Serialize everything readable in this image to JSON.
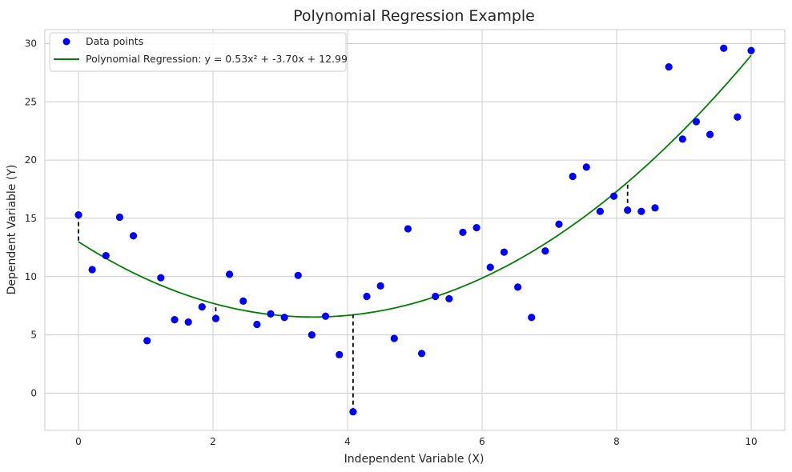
{
  "chart_data": {
    "type": "scatter",
    "title": "Polynomial Regression Example",
    "xlabel": "Independent Variable (X)",
    "ylabel": "Dependent Variable (Y)",
    "xlim": [
      -0.5,
      10.5
    ],
    "ylim": [
      -3.2,
      31.2
    ],
    "xticks": [
      0,
      2,
      4,
      6,
      8,
      10
    ],
    "yticks": [
      0,
      5,
      10,
      15,
      20,
      25,
      30
    ],
    "grid": true,
    "legend_position": "top-left",
    "series": [
      {
        "name": "Data points",
        "kind": "scatter",
        "color": "#0000ff",
        "x": [
          0.0,
          0.204,
          0.408,
          0.612,
          0.816,
          1.02,
          1.224,
          1.429,
          1.633,
          1.837,
          2.041,
          2.245,
          2.449,
          2.653,
          2.857,
          3.061,
          3.265,
          3.469,
          3.673,
          3.878,
          4.082,
          4.286,
          4.49,
          4.694,
          4.898,
          5.102,
          5.306,
          5.51,
          5.714,
          5.918,
          6.122,
          6.327,
          6.531,
          6.735,
          6.939,
          7.143,
          7.347,
          7.551,
          7.755,
          7.959,
          8.163,
          8.367,
          8.571,
          8.776,
          8.98,
          9.184,
          9.388,
          9.592,
          9.796,
          10.0
        ],
        "y": [
          15.3,
          10.6,
          11.8,
          15.1,
          13.5,
          4.5,
          9.9,
          6.3,
          6.1,
          7.4,
          6.4,
          10.2,
          7.9,
          5.9,
          6.8,
          6.5,
          10.1,
          5.0,
          6.6,
          3.3,
          -1.6,
          8.3,
          9.2,
          4.7,
          14.1,
          3.4,
          8.3,
          8.1,
          13.8,
          14.2,
          10.8,
          12.1,
          9.1,
          6.5,
          12.2,
          14.5,
          18.6,
          19.4,
          15.6,
          16.9,
          15.7,
          15.6,
          15.9,
          28.0,
          21.8,
          23.3,
          22.2,
          29.6,
          23.7,
          29.4
        ]
      },
      {
        "name": "Polynomial Regression: y = 0.53x² + -3.70x + 12.99",
        "kind": "line",
        "color": "#008000",
        "coefficients": [
          0.53,
          -3.7,
          12.99
        ],
        "x_range": [
          0,
          10
        ]
      }
    ],
    "residuals_highlighted": {
      "color": "#000000",
      "style": "dashed",
      "x": [
        0.0,
        2.041,
        4.082,
        8.163
      ]
    }
  }
}
